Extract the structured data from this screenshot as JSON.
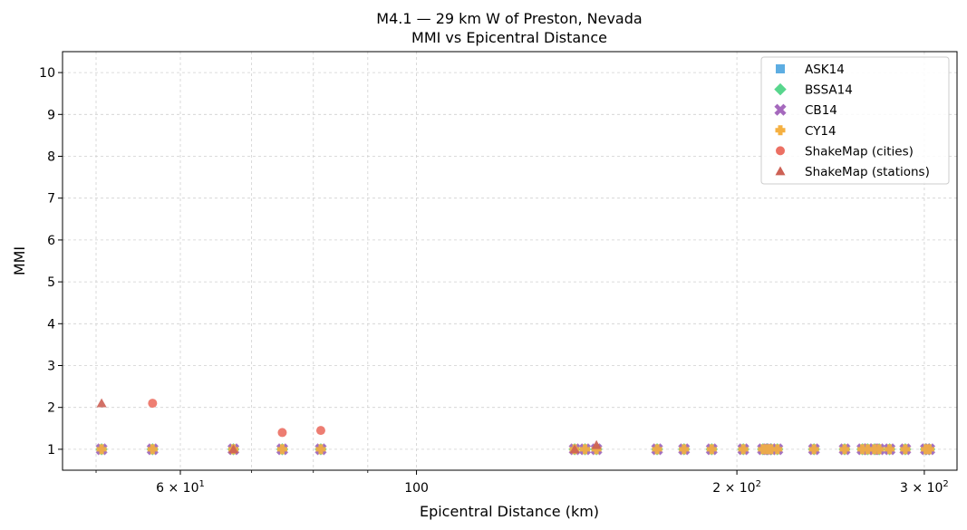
{
  "chart_data": {
    "type": "scatter",
    "title": "M4.1 — 29 km W of Preston, Nevada",
    "subtitle": "MMI vs Epicentral Distance",
    "xlabel": "Epicentral Distance (km)",
    "ylabel": "MMI",
    "x_scale": "log",
    "xlim": [
      46.5,
      322
    ],
    "ylim": [
      0.5,
      10.5
    ],
    "x_ticks": [
      {
        "value": 60,
        "label_base": "6 × 10",
        "label_exp": "1"
      },
      {
        "value": 100,
        "label": "100"
      },
      {
        "value": 200,
        "label_base": "2 × 10",
        "label_exp": "2"
      },
      {
        "value": 300,
        "label_base": "3 × 10",
        "label_exp": "2"
      }
    ],
    "y_ticks": [
      1,
      2,
      3,
      4,
      5,
      6,
      7,
      8,
      9,
      10
    ],
    "grid": true,
    "legend_position": "upper-right",
    "model_x": [
      50.6,
      56.5,
      67.3,
      74.8,
      81.3,
      140.8,
      144.0,
      147.6,
      168.3,
      178.4,
      189.4,
      202.8,
      211.6,
      213.6,
      215.4,
      218.3,
      236.3,
      252.5,
      262.4,
      265.4,
      269.3,
      272.1,
      278.3,
      287.9,
      301.0,
      303.3
    ],
    "series": [
      {
        "name": "ASK14",
        "marker": "square",
        "color": "#5dade2",
        "x": "model_x",
        "y_constant": 1.0
      },
      {
        "name": "BSSA14",
        "marker": "diamond",
        "color": "#58d68d",
        "x": "model_x",
        "y_constant": 1.0
      },
      {
        "name": "CB14",
        "marker": "x",
        "color": "#a569bd",
        "x": "model_x",
        "y_constant": 1.0
      },
      {
        "name": "CY14",
        "marker": "plus",
        "color": "#f5b041",
        "x": "model_x",
        "y_constant": 1.0
      },
      {
        "name": "ShakeMap (cities)",
        "marker": "circle",
        "color": "#ec7063",
        "points": [
          [
            56.5,
            2.1
          ],
          [
            74.8,
            1.4
          ],
          [
            81.3,
            1.45
          ]
        ]
      },
      {
        "name": "ShakeMap (stations)",
        "marker": "triangle",
        "color": "#cd6155",
        "points": [
          [
            50.6,
            2.1
          ],
          [
            67.3,
            1.0
          ],
          [
            140.8,
            1.0
          ],
          [
            147.6,
            1.1
          ]
        ]
      }
    ]
  }
}
